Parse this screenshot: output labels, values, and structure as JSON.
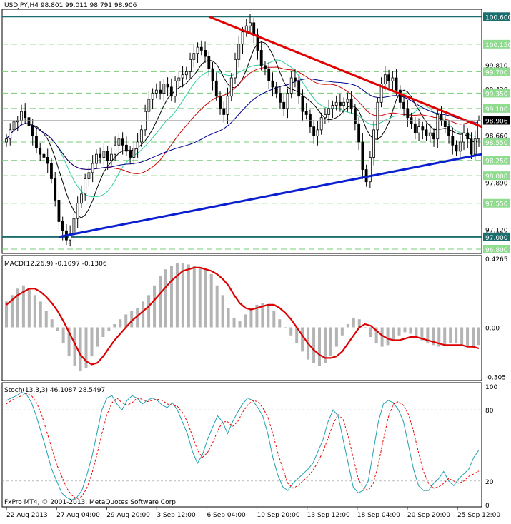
{
  "chart_data": [
    {
      "type": "candlestick",
      "panel": "price",
      "header": "USDJPY,H4  98.801 99.011 98.791 98.906",
      "symbol": "USDJPY",
      "timeframe": "H4",
      "last_bar": {
        "open": 98.801,
        "high": 99.011,
        "low": 98.791,
        "close": 98.906
      },
      "current_price": "98.906",
      "ylim": [
        96.73,
        100.72
      ],
      "ytick_labels": [
        "100.600",
        "100.150",
        "99.810",
        "99.700",
        "99.420",
        "99.350",
        "99.100",
        "98.660",
        "98.550",
        "98.250",
        "98.000",
        "97.890",
        "97.550",
        "97.120",
        "97.000",
        "96.800"
      ],
      "level_lines": [
        100.6,
        100.15,
        99.7,
        99.35,
        99.1,
        98.55,
        98.25,
        98.0,
        97.55,
        97.0,
        96.8
      ],
      "x_tick_labels": [
        "22 Aug 2013",
        "27 Aug 04:00",
        "29 Aug 20:00",
        "3 Sep 12:00",
        "6 Sep 04:00",
        "10 Sep 20:00",
        "13 Sep 12:00",
        "18 Sep 04:00",
        "20 Sep 20:00",
        "25 Sep 12:00"
      ],
      "close": [
        98.6,
        98.75,
        98.88,
        98.9,
        99.05,
        98.95,
        98.82,
        98.65,
        98.45,
        98.35,
        98.3,
        98.2,
        97.95,
        97.6,
        97.25,
        97.1,
        96.95,
        97.05,
        97.3,
        97.55,
        97.7,
        97.95,
        98.05,
        98.2,
        98.35,
        98.3,
        98.4,
        98.25,
        98.35,
        98.5,
        98.6,
        98.5,
        98.4,
        98.3,
        98.45,
        98.55,
        98.75,
        99.05,
        99.25,
        99.35,
        99.4,
        99.35,
        99.5,
        99.45,
        99.3,
        99.55,
        99.6,
        99.65,
        99.7,
        99.9,
        100.0,
        100.1,
        100.05,
        99.95,
        99.75,
        99.55,
        99.3,
        99.1,
        99.0,
        99.3,
        99.6,
        99.9,
        100.15,
        100.35,
        100.45,
        100.5,
        100.3,
        100.05,
        99.8,
        99.75,
        99.55,
        99.45,
        99.35,
        99.2,
        99.1,
        99.35,
        99.6,
        99.55,
        99.3,
        99.05,
        99.0,
        98.8,
        98.65,
        98.75,
        98.95,
        99.0,
        99.1,
        99.15,
        99.2,
        99.15,
        99.2,
        99.25,
        99.1,
        98.85,
        98.55,
        98.1,
        97.9,
        98.3,
        98.75,
        99.2,
        99.5,
        99.65,
        99.55,
        99.6,
        99.4,
        99.2,
        99.1,
        98.95,
        98.85,
        98.7,
        98.8,
        98.75,
        98.65,
        98.7,
        98.6,
        99.0,
        98.9,
        98.8,
        98.65,
        98.5,
        98.4,
        98.55,
        98.7,
        98.6,
        98.35,
        98.6,
        98.906
      ],
      "overlays": [
        {
          "name": "Moving Average (black)",
          "color": "#000000"
        },
        {
          "name": "Moving Average (green)",
          "color": "#2ecf9a"
        },
        {
          "name": "Moving Average (red)",
          "color": "#cc0000"
        },
        {
          "name": "Moving Average (blue)",
          "color": "#00008b"
        }
      ],
      "trendlines": [
        {
          "name": "resistance",
          "color": "#e00000",
          "from": [
            54,
            100.6
          ],
          "to": [
            125,
            98.8
          ]
        },
        {
          "name": "support",
          "color": "#0a1fd0",
          "from": [
            14,
            97.0
          ],
          "to": [
            125,
            98.35
          ]
        }
      ]
    },
    {
      "type": "histogram",
      "panel": "macd",
      "header": "MACD(12,26,9) -0.1097 -0.1306",
      "values_label": "-0.1097 -0.1306",
      "ylim": [
        -0.33,
        0.445
      ],
      "ytick_labels": [
        "0.4265",
        "0.00",
        "-0.305"
      ],
      "macd": [
        0.16,
        0.2,
        0.24,
        0.26,
        0.24,
        0.2,
        0.16,
        0.1,
        0.05,
        -0.02,
        -0.1,
        -0.18,
        -0.24,
        -0.27,
        -0.25,
        -0.18,
        -0.12,
        -0.06,
        -0.02,
        0.02,
        0.05,
        0.08,
        0.1,
        0.12,
        0.16,
        0.2,
        0.26,
        0.32,
        0.36,
        0.38,
        0.4,
        0.4,
        0.39,
        0.38,
        0.37,
        0.36,
        0.33,
        0.26,
        0.2,
        0.12,
        0.06,
        0.04,
        0.08,
        0.12,
        0.14,
        0.15,
        0.14,
        0.1,
        0.05,
        0.0,
        -0.05,
        -0.1,
        -0.15,
        -0.2,
        -0.22,
        -0.24,
        -0.22,
        -0.18,
        -0.12,
        -0.05,
        0.02,
        0.06,
        0.05,
        0.0,
        -0.06,
        -0.1,
        -0.12,
        -0.11,
        -0.08,
        -0.05,
        -0.03,
        -0.04,
        -0.06,
        -0.08,
        -0.1,
        -0.11,
        -0.12,
        -0.11,
        -0.1,
        -0.1,
        -0.11,
        -0.12,
        -0.13,
        -0.11
      ],
      "signal": [
        0.14,
        0.17,
        0.2,
        0.22,
        0.24,
        0.24,
        0.22,
        0.19,
        0.15,
        0.1,
        0.04,
        -0.03,
        -0.1,
        -0.17,
        -0.21,
        -0.23,
        -0.22,
        -0.18,
        -0.13,
        -0.08,
        -0.04,
        0.0,
        0.04,
        0.07,
        0.1,
        0.13,
        0.17,
        0.21,
        0.25,
        0.29,
        0.32,
        0.35,
        0.36,
        0.37,
        0.37,
        0.36,
        0.35,
        0.33,
        0.3,
        0.26,
        0.2,
        0.15,
        0.12,
        0.11,
        0.12,
        0.13,
        0.14,
        0.14,
        0.12,
        0.09,
        0.05,
        0.0,
        -0.05,
        -0.1,
        -0.14,
        -0.17,
        -0.19,
        -0.19,
        -0.18,
        -0.15,
        -0.1,
        -0.05,
        0.0,
        0.02,
        0.01,
        -0.02,
        -0.05,
        -0.07,
        -0.08,
        -0.08,
        -0.07,
        -0.06,
        -0.06,
        -0.07,
        -0.08,
        -0.09,
        -0.1,
        -0.11,
        -0.11,
        -0.11,
        -0.11,
        -0.12,
        -0.12,
        -0.1306
      ],
      "colors": {
        "histogram": "#b4b4b4",
        "signal": "#dd0000"
      }
    },
    {
      "type": "line",
      "panel": "stochastic",
      "header": "Stoch(13,3,3) 46.1087 28.5497",
      "values_label": "46.1087 28.5497",
      "ylim": [
        0,
        100
      ],
      "ytick_labels": [
        "100",
        "80",
        "20",
        "0"
      ],
      "levels": [
        80,
        20
      ],
      "main": [
        88,
        90,
        92,
        95,
        93,
        86,
        74,
        60,
        45,
        30,
        20,
        10,
        6,
        4,
        6,
        12,
        25,
        40,
        60,
        80,
        90,
        92,
        85,
        80,
        88,
        92,
        90,
        85,
        88,
        90,
        88,
        84,
        82,
        86,
        80,
        70,
        60,
        45,
        35,
        42,
        55,
        65,
        75,
        70,
        60,
        70,
        78,
        85,
        90,
        88,
        82,
        75,
        60,
        40,
        25,
        15,
        12,
        18,
        22,
        26,
        30,
        35,
        45,
        55,
        70,
        80,
        75,
        55,
        35,
        15,
        10,
        12,
        20,
        45,
        70,
        85,
        88,
        86,
        80,
        70,
        50,
        30,
        16,
        12,
        12,
        18,
        22,
        28,
        20,
        16,
        22,
        26,
        30,
        40,
        46.1
      ],
      "signal": [
        85,
        88,
        90,
        92,
        94,
        92,
        86,
        76,
        62,
        48,
        34,
        24,
        14,
        8,
        5,
        7,
        14,
        26,
        42,
        60,
        76,
        86,
        90,
        86,
        84,
        86,
        90,
        89,
        87,
        88,
        89,
        88,
        85,
        84,
        83,
        78,
        70,
        58,
        46,
        40,
        44,
        52,
        62,
        70,
        70,
        66,
        70,
        78,
        84,
        88,
        87,
        82,
        74,
        60,
        44,
        30,
        18,
        14,
        16,
        20,
        24,
        29,
        36,
        45,
        56,
        68,
        76,
        72,
        58,
        40,
        22,
        14,
        12,
        18,
        34,
        55,
        74,
        85,
        87,
        84,
        76,
        62,
        44,
        28,
        18,
        14,
        15,
        18,
        22,
        20,
        18,
        20,
        24,
        26,
        28.5
      ],
      "colors": {
        "main": "#20a0b0",
        "signal": "#ee0000"
      }
    }
  ],
  "footer": {
    "copyright": "FxPro MT4, © 2001-2013, MetaQuotes Software Corp."
  }
}
